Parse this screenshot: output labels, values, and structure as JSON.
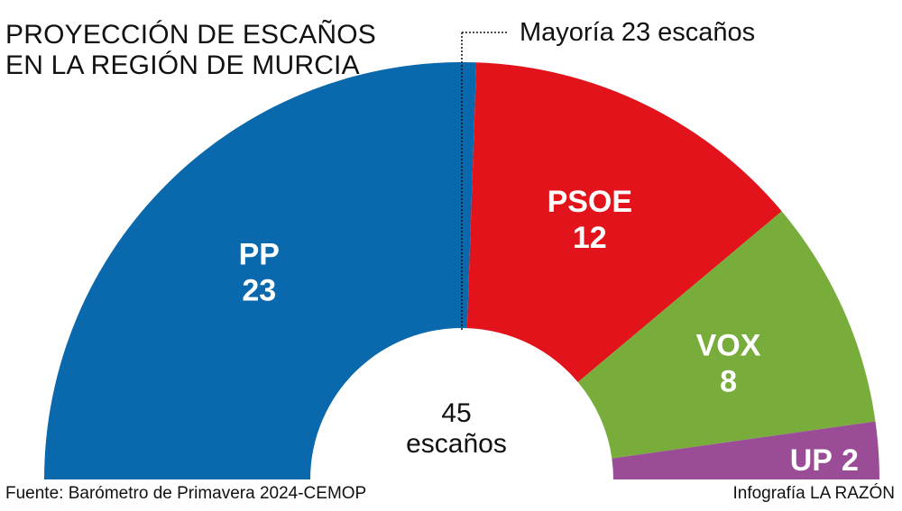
{
  "chart_data": {
    "type": "pie",
    "subtype": "semicircle-parliament",
    "title_lines": [
      "PROYECCIÓN DE ESCAÑOS",
      "EN LA REGIÓN DE MURCIA"
    ],
    "majority_label": "Mayoría 23 escaños",
    "majority": 23,
    "total": 45,
    "total_number": "45",
    "total_unit": "escaños",
    "parties": [
      {
        "name": "PP",
        "seats": 23,
        "color": "#0a69ac"
      },
      {
        "name": "PSOE",
        "seats": 12,
        "color": "#e2131b"
      },
      {
        "name": "VOX",
        "seats": 8,
        "color": "#78ad3c"
      },
      {
        "name": "UP",
        "seats": 2,
        "color": "#9b4c97"
      }
    ]
  },
  "footer": {
    "source": "Fuente: Barómetro de Primavera 2024-CEMOP",
    "credit": "Infografía LA RAZÓN"
  }
}
